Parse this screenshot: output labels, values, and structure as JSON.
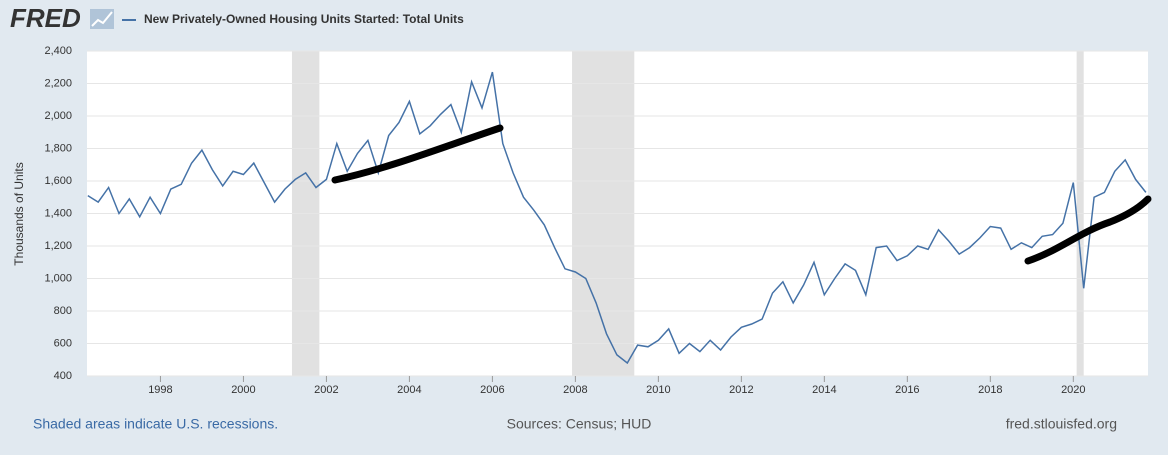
{
  "chart_data": {
    "type": "line",
    "logo": "FRED",
    "y_label": "Thousands of Units",
    "footnote": "Shaded areas indicate U.S. recessions.",
    "source": "Sources: Census; HUD",
    "site": "fred.stlouisfed.org",
    "grid": true,
    "xlim": [
      1996.23,
      2021.8
    ],
    "ylim": [
      400,
      2400
    ],
    "xticks": [
      1998,
      2000,
      2002,
      2004,
      2006,
      2008,
      2010,
      2012,
      2014,
      2016,
      2018,
      2020
    ],
    "yticks": [
      400,
      600,
      800,
      {
        "value": 1000,
        "label": "1,000"
      },
      {
        "value": 1200,
        "label": "1,200"
      },
      {
        "value": 1400,
        "label": "1,400"
      },
      {
        "value": 1600,
        "label": "1,600"
      },
      {
        "value": 1800,
        "label": "1,800"
      },
      {
        "value": 2000,
        "label": "2,000"
      },
      {
        "value": 2200,
        "label": "2,200"
      },
      {
        "value": 2400,
        "label": "2,400"
      }
    ],
    "recessions": [
      [
        2001.17,
        2001.83
      ],
      [
        2007.92,
        2009.42
      ],
      [
        2020.08,
        2020.25
      ]
    ],
    "recession_color": "#e1e1e1",
    "x": [
      1996.25,
      1996.5,
      1996.75,
      1997,
      1997.25,
      1997.5,
      1997.75,
      1998,
      1998.25,
      1998.5,
      1998.75,
      1999,
      1999.25,
      1999.5,
      1999.75,
      2000,
      2000.25,
      2000.5,
      2000.75,
      2001,
      2001.25,
      2001.5,
      2001.75,
      2002,
      2002.25,
      2002.5,
      2002.75,
      2003,
      2003.25,
      2003.5,
      2003.75,
      2004,
      2004.25,
      2004.5,
      2004.75,
      2005,
      2005.25,
      2005.5,
      2005.75,
      2006,
      2006.25,
      2006.5,
      2006.75,
      2007,
      2007.25,
      2007.5,
      2007.75,
      2008,
      2008.25,
      2008.5,
      2008.75,
      2009,
      2009.25,
      2009.5,
      2009.75,
      2010,
      2010.25,
      2010.5,
      2010.75,
      2011,
      2011.25,
      2011.5,
      2011.75,
      2012,
      2012.25,
      2012.5,
      2012.75,
      2013,
      2013.25,
      2013.5,
      2013.75,
      2014,
      2014.25,
      2014.5,
      2014.75,
      2015,
      2015.25,
      2015.5,
      2015.75,
      2016,
      2016.25,
      2016.5,
      2016.75,
      2017,
      2017.25,
      2017.5,
      2017.75,
      2018,
      2018.25,
      2018.5,
      2018.75,
      2019,
      2019.25,
      2019.5,
      2019.75,
      2020,
      2020.25,
      2020.5,
      2020.75,
      2021,
      2021.25,
      2021.5,
      2021.75
    ],
    "series": [
      {
        "name": "New Privately-Owned Housing Units Started: Total Units",
        "color": "#4572a7",
        "values": [
          1510,
          1470,
          1560,
          1400,
          1490,
          1380,
          1500,
          1400,
          1550,
          1580,
          1710,
          1790,
          1670,
          1570,
          1660,
          1640,
          1710,
          1590,
          1470,
          1550,
          1610,
          1650,
          1560,
          1610,
          1830,
          1660,
          1770,
          1850,
          1650,
          1880,
          1960,
          2090,
          1890,
          1940,
          2010,
          2070,
          1900,
          2210,
          2050,
          2270,
          1830,
          1650,
          1500,
          1420,
          1330,
          1190,
          1060,
          1040,
          1000,
          850,
          660,
          530,
          480,
          590,
          580,
          620,
          690,
          540,
          600,
          550,
          620,
          560,
          640,
          700,
          720,
          750,
          910,
          980,
          850,
          960,
          1100,
          900,
          1000,
          1090,
          1050,
          900,
          1190,
          1200,
          1110,
          1140,
          1200,
          1180,
          1300,
          1230,
          1150,
          1190,
          1250,
          1320,
          1310,
          1180,
          1220,
          1190,
          1260,
          1270,
          1340,
          1590,
          940,
          1500,
          1530,
          1660,
          1730,
          1610,
          1530
        ]
      }
    ]
  }
}
